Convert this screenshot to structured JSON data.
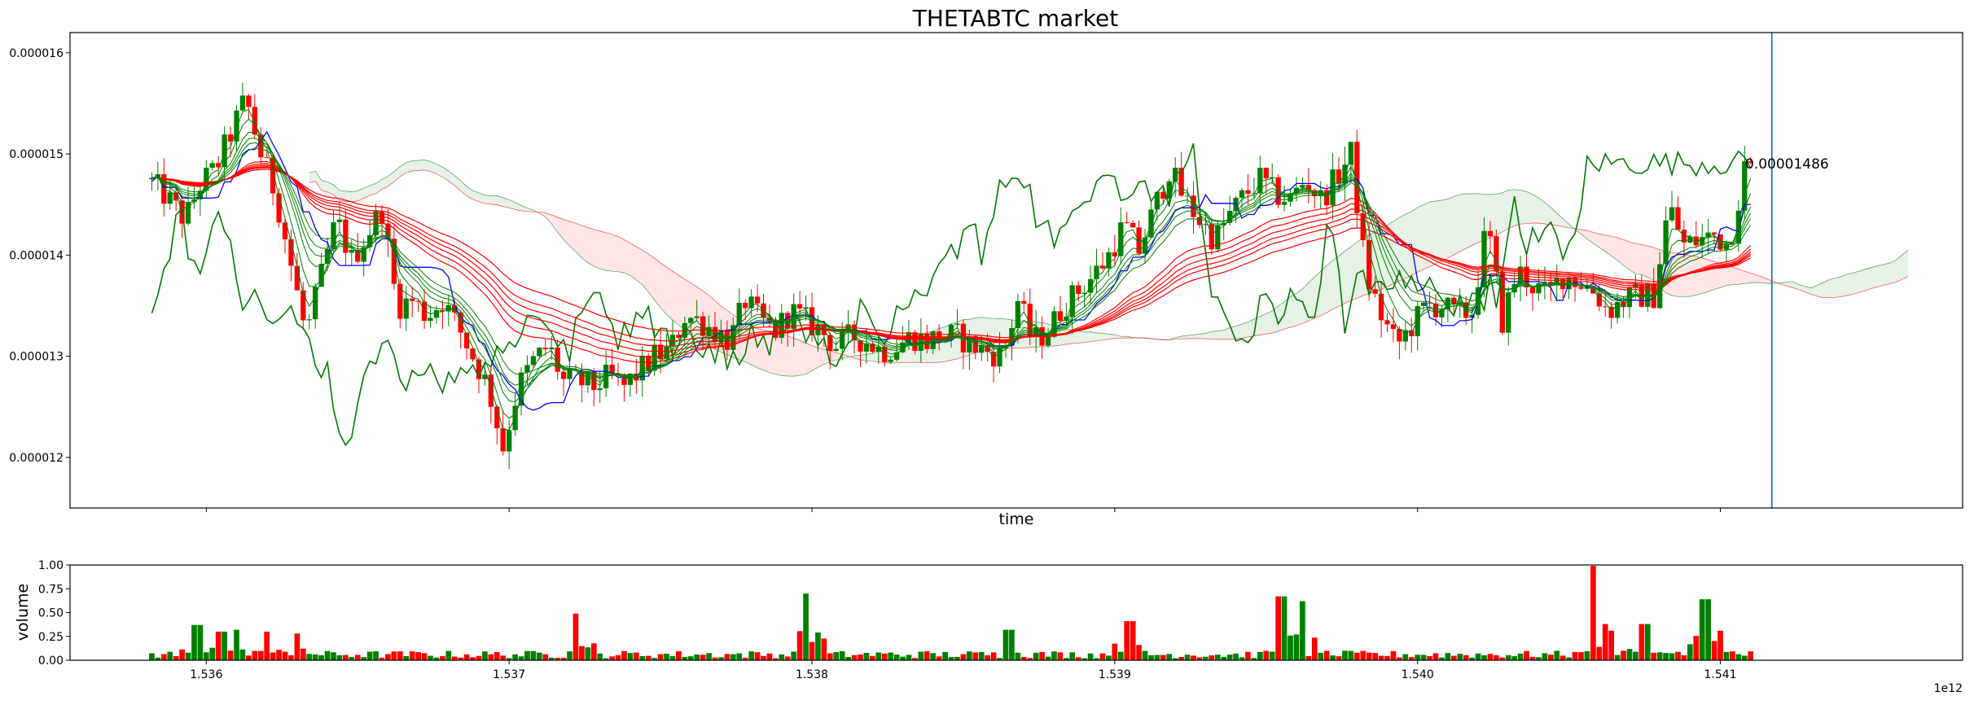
{
  "chart_data": [
    {
      "type": "candlestick",
      "title": "THETABTC market",
      "xlabel": "time",
      "ylabel": "",
      "x_offset_label": "1e12",
      "xlim": [
        1535.55,
        1541.8
      ],
      "ylim": [
        1.15e-05,
        1.62e-05
      ],
      "x_ticks": [
        {
          "v": 1536.0,
          "label": "1.536"
        },
        {
          "v": 1537.0,
          "label": "1.537"
        },
        {
          "v": 1538.0,
          "label": "1.538"
        },
        {
          "v": 1539.0,
          "label": "1.539"
        },
        {
          "v": 1540.0,
          "label": "1.540"
        },
        {
          "v": 1541.0,
          "label": "1.541"
        }
      ],
      "y_ticks": [
        {
          "v": 1.2e-05,
          "label": "0.000012"
        },
        {
          "v": 1.3e-05,
          "label": "0.000013"
        },
        {
          "v": 1.4e-05,
          "label": "0.000014"
        },
        {
          "v": 1.5e-05,
          "label": "0.000015"
        },
        {
          "v": 1.6e-05,
          "label": "0.000016"
        }
      ],
      "last_price_label": "0.00001486",
      "last_price": 1.486e-05,
      "marker_x": 1541.17,
      "x_unit_note": "x values in units of 1e9 (axis offset 1e12)",
      "price_path": [
        [
          1535.83,
          14.75
        ],
        [
          1535.88,
          14.6
        ],
        [
          1535.95,
          14.35
        ],
        [
          1536.0,
          14.7
        ],
        [
          1536.05,
          14.85
        ],
        [
          1536.1,
          15.2
        ],
        [
          1536.15,
          15.55
        ],
        [
          1536.2,
          15.0
        ],
        [
          1536.25,
          14.6
        ],
        [
          1536.3,
          13.9
        ],
        [
          1536.35,
          13.2
        ],
        [
          1536.4,
          13.8
        ],
        [
          1536.45,
          14.35
        ],
        [
          1536.5,
          13.95
        ],
        [
          1536.55,
          14.2
        ],
        [
          1536.6,
          14.45
        ],
        [
          1536.65,
          13.5
        ],
        [
          1536.7,
          13.55
        ],
        [
          1536.75,
          13.4
        ],
        [
          1536.8,
          13.55
        ],
        [
          1536.85,
          13.3
        ],
        [
          1536.9,
          13.0
        ],
        [
          1536.95,
          12.7
        ],
        [
          1537.0,
          12.1
        ],
        [
          1537.05,
          12.7
        ],
        [
          1537.1,
          12.95
        ],
        [
          1537.15,
          13.1
        ],
        [
          1537.2,
          12.75
        ],
        [
          1537.25,
          12.75
        ],
        [
          1537.3,
          12.7
        ],
        [
          1537.35,
          12.8
        ],
        [
          1537.4,
          12.7
        ],
        [
          1537.45,
          12.85
        ],
        [
          1537.5,
          13.0
        ],
        [
          1537.55,
          13.05
        ],
        [
          1537.6,
          13.4
        ],
        [
          1537.65,
          13.35
        ],
        [
          1537.7,
          13.25
        ],
        [
          1537.75,
          13.15
        ],
        [
          1537.8,
          13.55
        ],
        [
          1537.85,
          13.35
        ],
        [
          1537.9,
          13.25
        ],
        [
          1537.95,
          13.45
        ],
        [
          1538.0,
          13.35
        ],
        [
          1538.05,
          13.25
        ],
        [
          1538.1,
          13.1
        ],
        [
          1538.15,
          13.2
        ],
        [
          1538.2,
          13.15
        ],
        [
          1538.25,
          13.05
        ],
        [
          1538.3,
          13.1
        ],
        [
          1538.35,
          13.2
        ],
        [
          1538.4,
          13.15
        ],
        [
          1538.45,
          13.2
        ],
        [
          1538.5,
          13.2
        ],
        [
          1538.55,
          13.1
        ],
        [
          1538.6,
          13.05
        ],
        [
          1538.65,
          13.0
        ],
        [
          1538.7,
          13.55
        ],
        [
          1538.75,
          13.15
        ],
        [
          1538.8,
          13.25
        ],
        [
          1538.85,
          13.5
        ],
        [
          1538.9,
          13.65
        ],
        [
          1538.95,
          13.8
        ],
        [
          1539.0,
          14.0
        ],
        [
          1539.05,
          14.3
        ],
        [
          1539.1,
          14.05
        ],
        [
          1539.15,
          14.45
        ],
        [
          1539.2,
          14.85
        ],
        [
          1539.25,
          14.55
        ],
        [
          1539.3,
          14.35
        ],
        [
          1539.35,
          14.15
        ],
        [
          1539.4,
          14.4
        ],
        [
          1539.45,
          14.6
        ],
        [
          1539.5,
          14.75
        ],
        [
          1539.55,
          14.6
        ],
        [
          1539.6,
          14.55
        ],
        [
          1539.65,
          14.75
        ],
        [
          1539.7,
          14.55
        ],
        [
          1539.75,
          14.75
        ],
        [
          1539.8,
          15.0
        ],
        [
          1539.85,
          13.8
        ],
        [
          1539.9,
          13.4
        ],
        [
          1539.95,
          13.1
        ],
        [
          1540.0,
          13.3
        ],
        [
          1540.05,
          13.5
        ],
        [
          1540.1,
          13.5
        ],
        [
          1540.15,
          13.4
        ],
        [
          1540.2,
          13.45
        ],
        [
          1540.25,
          14.3
        ],
        [
          1540.3,
          13.35
        ],
        [
          1540.35,
          13.85
        ],
        [
          1540.4,
          13.7
        ],
        [
          1540.45,
          13.6
        ],
        [
          1540.5,
          13.8
        ],
        [
          1540.55,
          13.75
        ],
        [
          1540.6,
          13.65
        ],
        [
          1540.65,
          13.45
        ],
        [
          1540.7,
          13.55
        ],
        [
          1540.75,
          13.6
        ],
        [
          1540.8,
          13.6
        ],
        [
          1540.85,
          14.5
        ],
        [
          1540.9,
          14.1
        ],
        [
          1540.95,
          14.15
        ],
        [
          1541.0,
          14.2
        ],
        [
          1541.05,
          14.1
        ],
        [
          1541.1,
          14.86
        ]
      ],
      "volume_chart": {
        "ylabel": "volume",
        "ylim": [
          0,
          1.0
        ],
        "y_ticks": [
          {
            "v": 0.0,
            "label": "0.00"
          },
          {
            "v": 0.25,
            "label": "0.25"
          },
          {
            "v": 0.5,
            "label": "0.50"
          },
          {
            "v": 0.75,
            "label": "0.75"
          },
          {
            "v": 1.0,
            "label": "1.00"
          }
        ],
        "spikes": [
          [
            1535.97,
            0.37
          ],
          [
            1536.05,
            0.3
          ],
          [
            1536.1,
            0.32
          ],
          [
            1536.2,
            0.3
          ],
          [
            1536.3,
            0.28
          ],
          [
            1537.22,
            0.49
          ],
          [
            1537.98,
            0.7
          ],
          [
            1538.65,
            0.32
          ],
          [
            1539.05,
            0.41
          ],
          [
            1539.55,
            0.67
          ],
          [
            1539.62,
            0.62
          ],
          [
            1540.58,
            0.99
          ],
          [
            1540.62,
            0.38
          ],
          [
            1540.75,
            0.38
          ],
          [
            1540.95,
            0.64
          ],
          [
            1541.0,
            0.31
          ]
        ]
      }
    }
  ]
}
